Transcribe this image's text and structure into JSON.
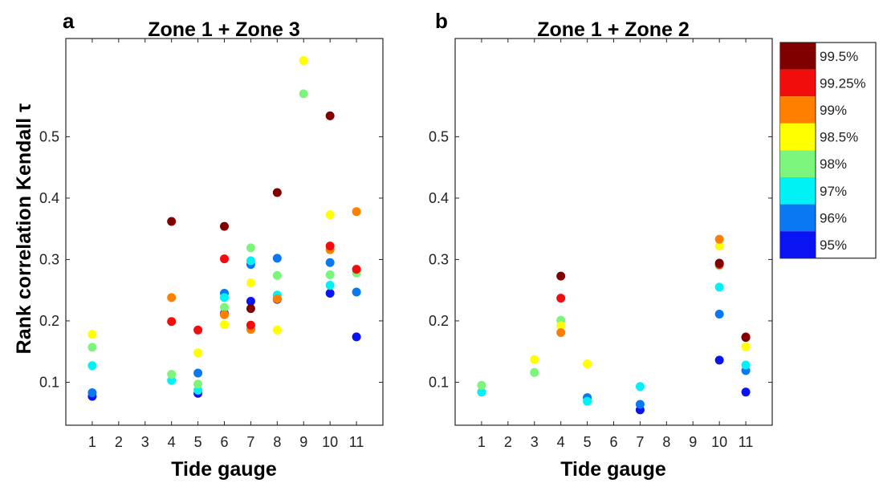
{
  "chart_data": [
    {
      "type": "scatter",
      "panel_label": "a",
      "title": "Zone 1 + Zone 3",
      "xlabel": "Tide gauge",
      "ylabel": "Rank correlation Kendall τ",
      "xlim": [
        0,
        12
      ],
      "ylim": [
        0.03,
        0.66
      ],
      "x_ticks": [
        1,
        2,
        3,
        4,
        5,
        6,
        7,
        8,
        9,
        10,
        11
      ],
      "y_ticks": [
        0.1,
        0.2,
        0.3,
        0.4,
        0.5
      ],
      "grid": false,
      "series": [
        {
          "name": "95%",
          "color": "#0a14f2",
          "points": [
            [
              1,
              0.077
            ],
            [
              5,
              0.082
            ],
            [
              6,
              0.212
            ],
            [
              7,
              0.232
            ],
            [
              8,
              0.235
            ],
            [
              10,
              0.245
            ],
            [
              11,
              0.174
            ]
          ]
        },
        {
          "name": "96%",
          "color": "#0a78f2",
          "points": [
            [
              1,
              0.083
            ],
            [
              5,
              0.115
            ],
            [
              6,
              0.245
            ],
            [
              7,
              0.292
            ],
            [
              8,
              0.302
            ],
            [
              10,
              0.295
            ],
            [
              11,
              0.247
            ]
          ]
        },
        {
          "name": "97%",
          "color": "#00f2f5",
          "points": [
            [
              1,
              0.127
            ],
            [
              4,
              0.103
            ],
            [
              5,
              0.087
            ],
            [
              6,
              0.238
            ],
            [
              7,
              0.298
            ],
            [
              8,
              0.242
            ],
            [
              10,
              0.258
            ]
          ]
        },
        {
          "name": "98%",
          "color": "#7cf57c",
          "points": [
            [
              1,
              0.157
            ],
            [
              4,
              0.113
            ],
            [
              5,
              0.097
            ],
            [
              6,
              0.222
            ],
            [
              7,
              0.319
            ],
            [
              8,
              0.274
            ],
            [
              9,
              0.57
            ],
            [
              10,
              0.275
            ],
            [
              11,
              0.278
            ]
          ]
        },
        {
          "name": "98.5%",
          "color": "#ffff00",
          "points": [
            [
              1,
              0.178
            ],
            [
              5,
              0.148
            ],
            [
              6,
              0.194
            ],
            [
              7,
              0.262
            ],
            [
              8,
              0.185
            ],
            [
              9,
              0.624
            ],
            [
              10,
              0.373
            ]
          ]
        },
        {
          "name": "99%",
          "color": "#ff8000",
          "points": [
            [
              4,
              0.238
            ],
            [
              6,
              0.21
            ],
            [
              7,
              0.186
            ],
            [
              8,
              0.236
            ],
            [
              10,
              0.316
            ],
            [
              11,
              0.378
            ]
          ]
        },
        {
          "name": "99.25%",
          "color": "#f20d0d",
          "points": [
            [
              4,
              0.199
            ],
            [
              5,
              0.185
            ],
            [
              6,
              0.301
            ],
            [
              7,
              0.193
            ],
            [
              10,
              0.322
            ],
            [
              11,
              0.284
            ]
          ]
        },
        {
          "name": "99.5%",
          "color": "#800000",
          "points": [
            [
              4,
              0.362
            ],
            [
              6,
              0.354
            ],
            [
              7,
              0.22
            ],
            [
              8,
              0.409
            ],
            [
              10,
              0.534
            ]
          ]
        }
      ]
    },
    {
      "type": "scatter",
      "panel_label": "b",
      "title": "Zone 1 + Zone 2",
      "xlabel": "Tide gauge",
      "ylabel": "",
      "xlim": [
        0,
        12
      ],
      "ylim": [
        0.03,
        0.66
      ],
      "x_ticks": [
        1,
        2,
        3,
        4,
        5,
        6,
        7,
        8,
        9,
        10,
        11
      ],
      "y_ticks": [
        0.1,
        0.2,
        0.3,
        0.4,
        0.5
      ],
      "grid": false,
      "series": [
        {
          "name": "95%",
          "color": "#0a14f2",
          "points": [
            [
              7,
              0.055
            ],
            [
              10,
              0.136
            ],
            [
              11,
              0.084
            ]
          ]
        },
        {
          "name": "96%",
          "color": "#0a78f2",
          "points": [
            [
              5,
              0.075
            ],
            [
              7,
              0.064
            ],
            [
              10,
              0.211
            ],
            [
              11,
              0.119
            ]
          ]
        },
        {
          "name": "97%",
          "color": "#00f2f5",
          "points": [
            [
              1,
              0.084
            ],
            [
              5,
              0.069
            ],
            [
              7,
              0.093
            ],
            [
              10,
              0.255
            ],
            [
              11,
              0.128
            ]
          ]
        },
        {
          "name": "98%",
          "color": "#7cf57c",
          "points": [
            [
              1,
              0.095
            ],
            [
              3,
              0.116
            ],
            [
              4,
              0.201
            ],
            [
              10,
              0.29
            ]
          ]
        },
        {
          "name": "98.5%",
          "color": "#ffff00",
          "points": [
            [
              3,
              0.137
            ],
            [
              4,
              0.192
            ],
            [
              5,
              0.13
            ],
            [
              10,
              0.322
            ],
            [
              11,
              0.158
            ]
          ]
        },
        {
          "name": "99%",
          "color": "#ff8000",
          "points": [
            [
              4,
              0.181
            ],
            [
              10,
              0.333
            ]
          ]
        },
        {
          "name": "99.25%",
          "color": "#f20d0d",
          "points": [
            [
              4,
              0.237
            ],
            [
              10,
              0.292
            ],
            [
              11,
              0.174
            ]
          ]
        },
        {
          "name": "99.5%",
          "color": "#800000",
          "points": [
            [
              4,
              0.273
            ],
            [
              10,
              0.294
            ],
            [
              11,
              0.173
            ]
          ]
        }
      ]
    }
  ],
  "legend": {
    "placement": "right",
    "entries": [
      {
        "label": "99.5%",
        "color": "#800000"
      },
      {
        "label": "99.25%",
        "color": "#f20d0d"
      },
      {
        "label": "99%",
        "color": "#ff8000"
      },
      {
        "label": "98.5%",
        "color": "#ffff00"
      },
      {
        "label": "98%",
        "color": "#7cf57c"
      },
      {
        "label": "97%",
        "color": "#00f2f5"
      },
      {
        "label": "96%",
        "color": "#0a78f2"
      },
      {
        "label": "95%",
        "color": "#0a14f2"
      }
    ]
  }
}
